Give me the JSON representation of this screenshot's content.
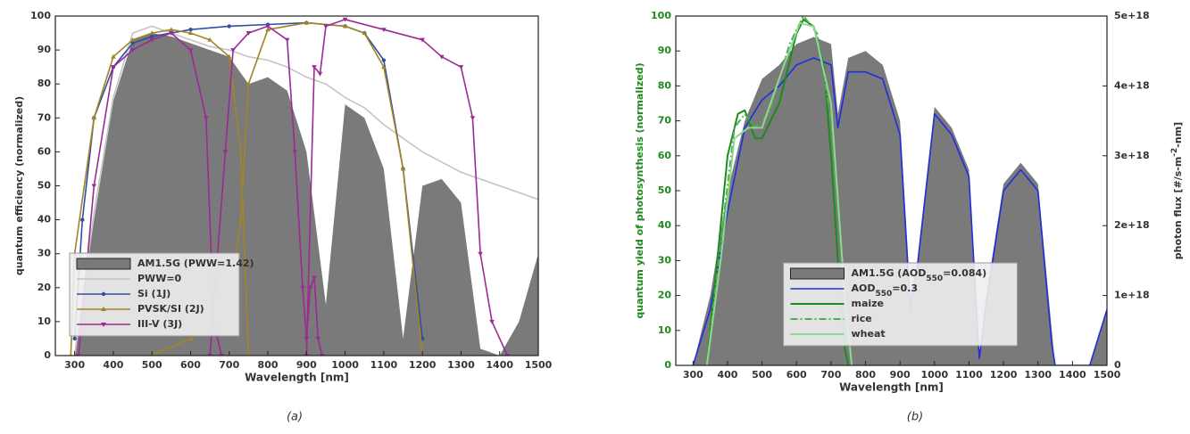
{
  "chart_data": [
    {
      "type": "line",
      "xlabel": "Wavelength [nm]",
      "ylabel": "quantum efficiency (normalized)",
      "caption": "(a)",
      "xlim": [
        250,
        1500
      ],
      "xticks": [
        300,
        400,
        500,
        600,
        700,
        800,
        900,
        1000,
        1100,
        1200,
        1300,
        1400,
        1500
      ],
      "ylim": [
        0,
        100
      ],
      "yticks": [
        0,
        10,
        20,
        30,
        40,
        50,
        60,
        70,
        80,
        90,
        100
      ],
      "legend_loc": "lower left",
      "series": [
        {
          "name": "AM1.5G (PWW=1.42)",
          "style": "area",
          "color": "#7a7a7a",
          "x": [
            300,
            350,
            400,
            450,
            500,
            550,
            600,
            650,
            700,
            750,
            800,
            850,
            900,
            950,
            1000,
            1050,
            1100,
            1150,
            1200,
            1250,
            1300,
            1350,
            1400,
            1450,
            1500
          ],
          "values": [
            0,
            40,
            75,
            93,
            95,
            94,
            92,
            90,
            88,
            80,
            82,
            78,
            60,
            15,
            74,
            70,
            55,
            5,
            50,
            52,
            45,
            2,
            0,
            10,
            30
          ]
        },
        {
          "name": "PWW=0",
          "style": "line",
          "color": "#c4c4c4",
          "x": [
            300,
            350,
            400,
            450,
            500,
            550,
            600,
            650,
            700,
            750,
            800,
            850,
            900,
            950,
            1000,
            1050,
            1100,
            1150,
            1200,
            1250,
            1300,
            1350,
            1400,
            1450,
            1500
          ],
          "values": [
            0,
            42,
            76,
            95,
            97,
            95,
            93,
            91,
            90,
            88,
            87,
            85,
            82,
            80,
            76,
            73,
            68,
            64,
            60,
            57,
            54,
            52,
            50,
            48,
            46
          ]
        },
        {
          "name": "Si (1J)",
          "style": "line",
          "marker": "circle",
          "color": "#2f4fa5",
          "x": [
            300,
            320,
            350,
            400,
            450,
            500,
            600,
            700,
            800,
            900,
            1000,
            1050,
            1100,
            1150,
            1200
          ],
          "values": [
            5,
            40,
            70,
            85,
            92,
            94,
            96,
            97,
            97.5,
            98,
            97,
            95,
            87,
            55,
            5
          ]
        },
        {
          "name": "PVSK/SI (2J)",
          "style": "line",
          "marker": "triangle",
          "color": "#a38424",
          "x": [
            290,
            300,
            350,
            400,
            450,
            500,
            550,
            600,
            650,
            700,
            730,
            750,
            750,
            500,
            600,
            700,
            730,
            750,
            800,
            900,
            1000,
            1050,
            1100,
            1150,
            1200
          ],
          "values": [
            0,
            30,
            70,
            88,
            93,
            95,
            96,
            95,
            93,
            88,
            60,
            0,
            null,
            0,
            5,
            15,
            40,
            80,
            96,
            98,
            97,
            95,
            85,
            55,
            0
          ]
        },
        {
          "name": "III-V (3J)",
          "style": "line",
          "marker": "triangle-down",
          "color": "#9b2a94",
          "x": [
            310,
            350,
            400,
            450,
            500,
            550,
            600,
            640,
            660,
            680,
            680,
            650,
            690,
            710,
            750,
            800,
            850,
            870,
            890,
            900,
            910,
            920,
            930,
            940,
            940,
            900,
            920,
            935,
            950,
            1000,
            1100,
            1200,
            1250,
            1300,
            1330,
            1350,
            1380,
            1420
          ],
          "values": [
            0,
            50,
            85,
            90,
            93,
            95,
            90,
            70,
            10,
            0,
            null,
            0,
            60,
            90,
            95,
            97,
            93,
            60,
            20,
            5,
            20,
            23,
            5,
            0,
            null,
            0,
            85,
            83,
            97,
            99,
            96,
            93,
            88,
            85,
            70,
            30,
            10,
            0
          ]
        }
      ]
    },
    {
      "type": "line",
      "xlabel": "Wavelength [nm]",
      "ylabel": "quantum yield  of photosynthesis (normalized)",
      "ylabel_color": "#1e8a1e",
      "y2label": [
        "photon flux [#/s-m",
        "-2",
        "-nm]"
      ],
      "caption": "(b)",
      "xlim": [
        250,
        1500
      ],
      "xticks": [
        300,
        400,
        500,
        600,
        700,
        800,
        900,
        1000,
        1100,
        1200,
        1300,
        1400,
        1500
      ],
      "ylim": [
        0,
        100
      ],
      "yticks": [
        0,
        10,
        20,
        30,
        40,
        50,
        60,
        70,
        80,
        90,
        100
      ],
      "y2lim": [
        0,
        5e+18
      ],
      "y2ticks": [
        0,
        {
          "value": 1e+18,
          "label": "1e+18"
        },
        {
          "value": 2e+18,
          "label": "2e+18"
        },
        {
          "value": 3e+18,
          "label": "3e+18"
        },
        {
          "value": 4e+18,
          "label": "4e+18"
        },
        {
          "value": 5e+18,
          "label": "5e+18"
        }
      ],
      "legend_loc": "lower center",
      "series": [
        {
          "name": [
            "AM1.5G (AOD",
            "550",
            "=0.084)"
          ],
          "style": "area",
          "axis": "y2",
          "color": "#7a7a7a",
          "x": [
            300,
            350,
            400,
            450,
            500,
            550,
            600,
            650,
            700,
            720,
            750,
            800,
            850,
            900,
            930,
            950,
            1000,
            1050,
            1100,
            1130,
            1150,
            1200,
            1250,
            1300,
            1340,
            1350,
            1450,
            1500
          ],
          "values": [
            0,
            1e+18,
            2.5e+18,
            3.5e+18,
            4.1e+18,
            4.3e+18,
            4.6e+18,
            4.7e+18,
            4.6e+18,
            3.6e+18,
            4.4e+18,
            4.5e+18,
            4.3e+18,
            3.5e+18,
            1e+18,
            1.5e+18,
            3.7e+18,
            3.4e+18,
            2.8e+18,
            2e+17,
            1e+18,
            2.6e+18,
            2.9e+18,
            2.6e+18,
            5e+17,
            0,
            0,
            8e+17
          ]
        },
        {
          "name": [
            "AOD",
            "550",
            "=0.3"
          ],
          "style": "line",
          "axis": "y2",
          "color": "#1f2fe0",
          "x": [
            300,
            350,
            400,
            450,
            500,
            550,
            600,
            650,
            700,
            720,
            750,
            800,
            850,
            900,
            930,
            950,
            1000,
            1050,
            1100,
            1130,
            1150,
            1200,
            1250,
            1300,
            1340,
            1350,
            1450,
            1500
          ],
          "values": [
            0,
            8e+17,
            2.2e+18,
            3.4e+18,
            3.8e+18,
            4e+18,
            4.3e+18,
            4.4e+18,
            4.3e+18,
            3.4e+18,
            4.2e+18,
            4.2e+18,
            4.1e+18,
            3.3e+18,
            8e+17,
            1.4e+18,
            3.6e+18,
            3.3e+18,
            2.7e+18,
            1e+17,
            9e+17,
            2.5e+18,
            2.8e+18,
            2.5e+18,
            3e+17,
            0,
            0,
            8e+17
          ]
        },
        {
          "name": "maize",
          "style": "line",
          "color": "#1e8a1e",
          "width": 2,
          "x": [
            340,
            370,
            400,
            430,
            450,
            480,
            500,
            550,
            600,
            620,
            650,
            680,
            700,
            720,
            740,
            750
          ],
          "values": [
            0,
            30,
            60,
            72,
            73,
            65,
            65,
            75,
            95,
            99,
            97,
            85,
            60,
            30,
            5,
            0
          ]
        },
        {
          "name": "rice",
          "style": "line",
          "dash": "dashdot",
          "color": "#4caf50",
          "width": 2,
          "x": [
            340,
            380,
            420,
            450,
            480,
            520,
            580,
            620,
            660,
            700,
            740,
            760
          ],
          "values": [
            0,
            35,
            68,
            72,
            68,
            72,
            92,
            100,
            95,
            70,
            20,
            0
          ]
        },
        {
          "name": "wheat",
          "style": "line",
          "color": "#8fd88f",
          "width": 2,
          "x": [
            340,
            380,
            420,
            460,
            500,
            560,
            610,
            650,
            700,
            740,
            760
          ],
          "values": [
            0,
            30,
            65,
            68,
            68,
            85,
            98,
            97,
            75,
            20,
            0
          ]
        }
      ]
    }
  ]
}
